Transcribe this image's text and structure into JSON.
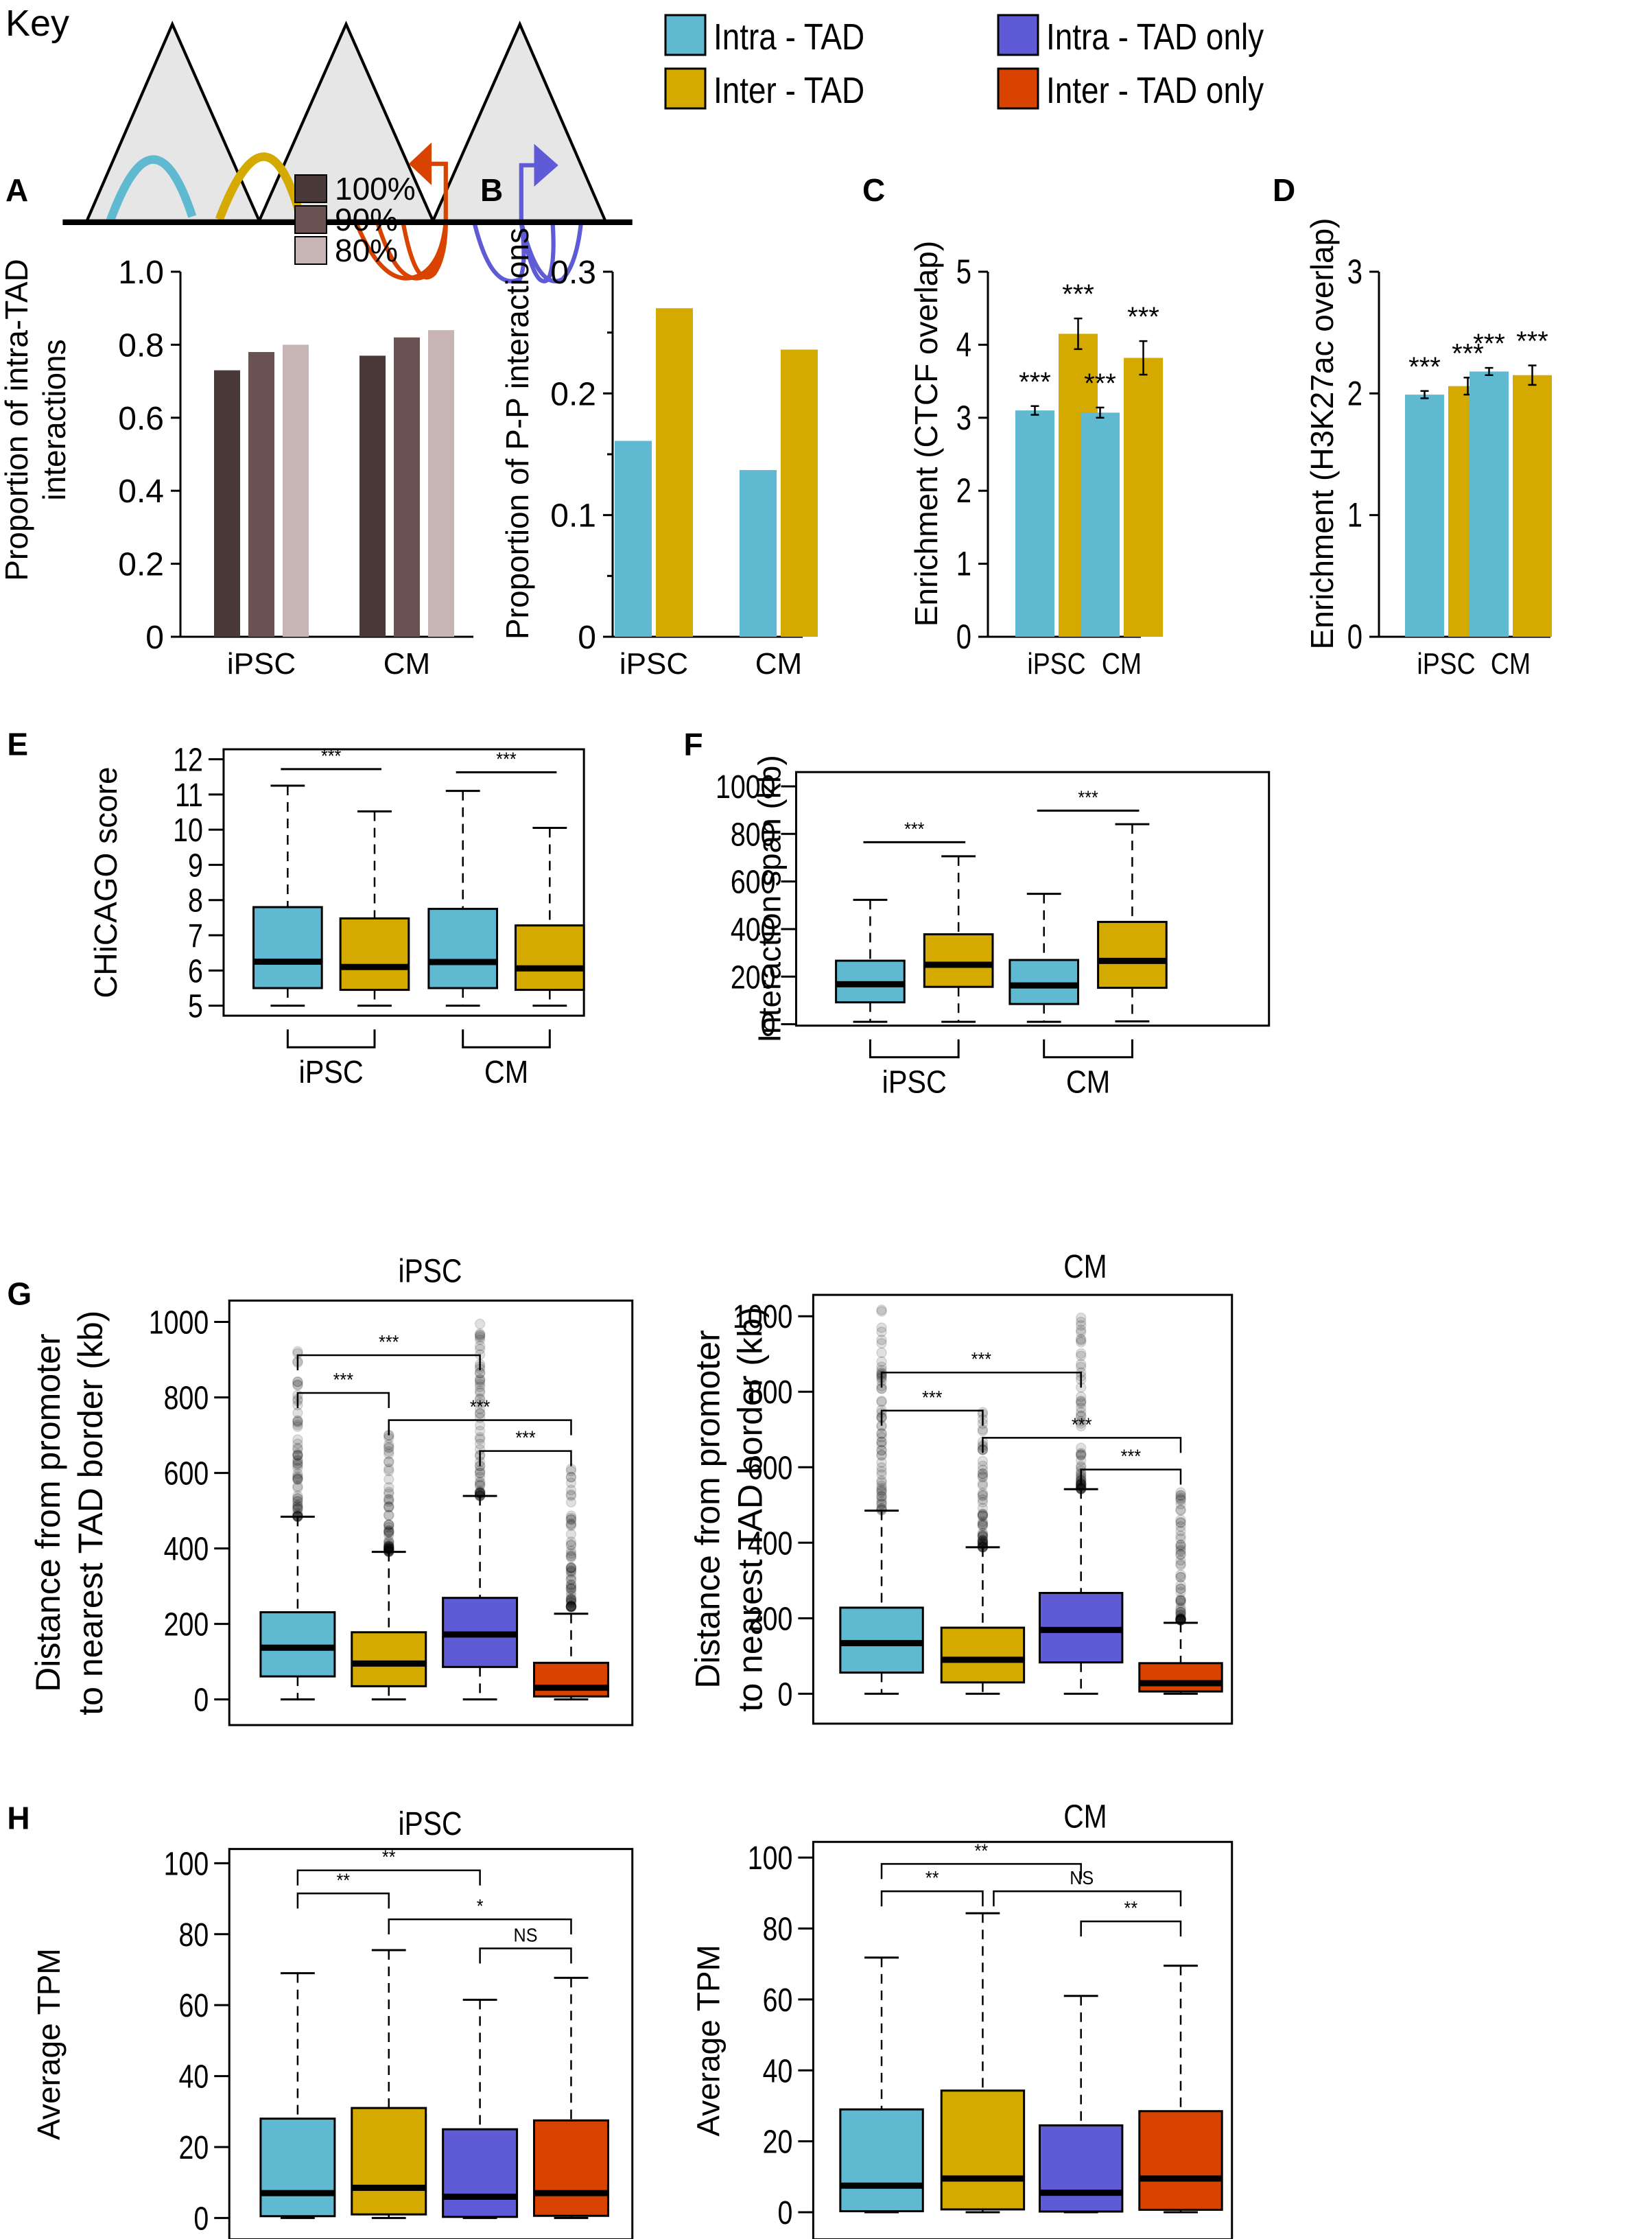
{
  "key": {
    "title": "Key",
    "legend": [
      {
        "label": "Intra - TAD",
        "color": "#5fbad1"
      },
      {
        "label": "Inter - TAD",
        "color": "#d4a900"
      },
      {
        "label": "Intra - TAD only",
        "color": "#5f5bd6"
      },
      {
        "label": "Inter - TAD only",
        "color": "#d84400"
      }
    ],
    "diagram": {
      "tad_fill": "#e6e6e6",
      "arc_colors": {
        "intra": "#5fbad1",
        "inter": "#d4a900",
        "inter_only": "#d84400",
        "intra_only": "#5f5bd6"
      }
    }
  },
  "chart_data": [
    {
      "id": "A",
      "panel_label": "A",
      "type": "bar",
      "categories": [
        "iPSC",
        "CM"
      ],
      "series": [
        {
          "name": "100%",
          "color": "#4a3939",
          "values": [
            0.73,
            0.77
          ]
        },
        {
          "name": "90%",
          "color": "#6b5252",
          "values": [
            0.78,
            0.82
          ]
        },
        {
          "name": "80%",
          "color": "#c6b5b4",
          "values": [
            0.8,
            0.84
          ]
        }
      ],
      "title": "",
      "xlabel": "",
      "ylabel": "Proportion of intra-TAD interactions",
      "ylabel_lines": [
        "Proportion of intra-TAD",
        "interactions"
      ],
      "ylim": [
        0,
        1.0
      ],
      "yticks": [
        0,
        0.2,
        0.4,
        0.6,
        0.8,
        1.0
      ],
      "ytick_labels": [
        "0",
        "0.2",
        "0.4",
        "0.6",
        "0.8",
        "1.0"
      ],
      "legend_position": "top-right",
      "grid": false
    },
    {
      "id": "B",
      "panel_label": "B",
      "type": "bar",
      "categories": [
        "iPSC",
        "CM"
      ],
      "series": [
        {
          "name": "Intra - TAD",
          "color": "#5fbad1",
          "values": [
            0.161,
            0.137
          ]
        },
        {
          "name": "Inter - TAD",
          "color": "#d4a900",
          "values": [
            0.27,
            0.236
          ]
        }
      ],
      "title": "",
      "xlabel": "",
      "ylabel": "Proportion of P-P interactions",
      "ylim": [
        0,
        0.3
      ],
      "yticks": [
        0,
        0.1,
        0.2,
        0.3
      ],
      "ytick_labels": [
        "0",
        "0.1",
        "0.2",
        "0.3"
      ],
      "minor_yticks": [
        0.05,
        0.15,
        0.25
      ],
      "grid": false
    },
    {
      "id": "C",
      "panel_label": "C",
      "type": "bar",
      "categories": [
        "iPSC",
        "CM"
      ],
      "series": [
        {
          "name": "Intra - TAD",
          "color": "#5fbad1",
          "values": [
            3.1,
            3.07
          ],
          "err": [
            0.06,
            0.07
          ],
          "sig": [
            "***",
            "***"
          ]
        },
        {
          "name": "Inter - TAD",
          "color": "#d4a900",
          "values": [
            4.15,
            3.82
          ],
          "err": [
            0.21,
            0.23
          ],
          "sig": [
            "***",
            "***"
          ]
        }
      ],
      "title": "",
      "xlabel": "",
      "ylabel": "Enrichment (CTCF overlap)",
      "ylim": [
        0,
        5
      ],
      "yticks": [
        0,
        1,
        2,
        3,
        4,
        5
      ],
      "ytick_labels": [
        "0",
        "1",
        "2",
        "3",
        "4",
        "5"
      ],
      "grid": false
    },
    {
      "id": "D",
      "panel_label": "D",
      "type": "bar",
      "categories": [
        "iPSC",
        "CM"
      ],
      "series": [
        {
          "name": "Intra - TAD",
          "color": "#5fbad1",
          "values": [
            1.99,
            2.18
          ],
          "err": [
            0.03,
            0.03
          ],
          "sig": [
            "***",
            "***"
          ]
        },
        {
          "name": "Inter - TAD",
          "color": "#d4a900",
          "values": [
            2.06,
            2.15
          ],
          "err": [
            0.07,
            0.08
          ],
          "sig": [
            "***",
            "***"
          ]
        }
      ],
      "title": "",
      "xlabel": "",
      "ylabel": "Enrichment (H3K27ac overlap)",
      "ylim": [
        0,
        3
      ],
      "yticks": [
        0,
        1,
        2,
        3
      ],
      "ytick_labels": [
        "0",
        "1",
        "2",
        "3"
      ],
      "grid": false
    },
    {
      "id": "E",
      "panel_label": "E",
      "type": "box",
      "title": "",
      "ylabel": "CHiCAGO score",
      "ylim": [
        5,
        12
      ],
      "yticks": [
        5,
        6,
        7,
        8,
        9,
        10,
        11,
        12
      ],
      "ytick_labels": [
        "5",
        "6",
        "7",
        "8",
        "9",
        "10",
        "11",
        "12"
      ],
      "groups": [
        "iPSC",
        "CM"
      ],
      "boxes": [
        {
          "group": "iPSC",
          "series": "Intra - TAD",
          "color": "#5fbad1",
          "whisker_low": 5.0,
          "q1": 5.5,
          "median": 6.25,
          "q3": 7.8,
          "whisker_high": 11.25
        },
        {
          "group": "iPSC",
          "series": "Inter - TAD",
          "color": "#d4a900",
          "whisker_low": 5.0,
          "q1": 5.45,
          "median": 6.1,
          "q3": 7.48,
          "whisker_high": 10.52
        },
        {
          "group": "CM",
          "series": "Intra - TAD",
          "color": "#5fbad1",
          "whisker_low": 5.0,
          "q1": 5.5,
          "median": 6.24,
          "q3": 7.75,
          "whisker_high": 11.1
        },
        {
          "group": "CM",
          "series": "Inter - TAD",
          "color": "#d4a900",
          "whisker_low": 5.0,
          "q1": 5.45,
          "median": 6.06,
          "q3": 7.28,
          "whisker_high": 10.05
        }
      ],
      "comparisons": [
        {
          "from": 0,
          "to": 1,
          "label": "***",
          "y": 11.72
        },
        {
          "from": 2,
          "to": 3,
          "label": "***",
          "y": 11.63
        }
      ]
    },
    {
      "id": "F",
      "panel_label": "F",
      "type": "box",
      "title": "",
      "ylabel": "Interaction span (kb)",
      "ylim": [
        0,
        1000
      ],
      "yticks": [
        0,
        200,
        400,
        600,
        800,
        1000
      ],
      "ytick_labels": [
        "0",
        "200",
        "400",
        "600",
        "800",
        "1000"
      ],
      "groups": [
        "iPSC",
        "CM"
      ],
      "boxes": [
        {
          "group": "iPSC",
          "series": "Intra - TAD",
          "color": "#5fbad1",
          "whisker_low": 10,
          "q1": 92,
          "median": 168,
          "q3": 267,
          "whisker_high": 523
        },
        {
          "group": "iPSC",
          "series": "Inter - TAD",
          "color": "#d4a900",
          "whisker_low": 10,
          "q1": 157,
          "median": 250,
          "q3": 378,
          "whisker_high": 706
        },
        {
          "group": "CM",
          "series": "Intra - TAD",
          "color": "#5fbad1",
          "whisker_low": 10,
          "q1": 85,
          "median": 163,
          "q3": 270,
          "whisker_high": 548
        },
        {
          "group": "CM",
          "series": "Inter - TAD",
          "color": "#d4a900",
          "whisker_low": 12,
          "q1": 153,
          "median": 266,
          "q3": 430,
          "whisker_high": 841
        }
      ],
      "comparisons": [
        {
          "from": 0,
          "to": 1,
          "label": "***",
          "y": 765
        },
        {
          "from": 2,
          "to": 3,
          "label": "***",
          "y": 898
        }
      ]
    },
    {
      "id": "G-iPSC",
      "panel_label": "G",
      "type": "box",
      "title": "iPSC",
      "ylabel": "Distance from promoter to nearest TAD border (kb)",
      "ylabel_lines": [
        "Distance from promoter",
        "to nearest TAD border (kb)"
      ],
      "ylim": [
        0,
        1000
      ],
      "yticks": [
        0,
        200,
        400,
        600,
        800,
        1000
      ],
      "ytick_labels": [
        "0",
        "200",
        "400",
        "600",
        "800",
        "1000"
      ],
      "boxes": [
        {
          "series": "Intra - TAD",
          "color": "#5fbad1",
          "whisker_low": 0,
          "q1": 61,
          "median": 137,
          "q3": 231,
          "whisker_high": 484,
          "outliers_range": [
            484,
            1015
          ]
        },
        {
          "series": "Inter - TAD",
          "color": "#d4a900",
          "whisker_low": 0,
          "q1": 35,
          "median": 95,
          "q3": 178,
          "whisker_high": 391,
          "outliers_range": [
            391,
            705
          ]
        },
        {
          "series": "Intra - TAD only",
          "color": "#5f5bd6",
          "whisker_low": 0,
          "q1": 86,
          "median": 172,
          "q3": 269,
          "whisker_high": 539,
          "outliers_range": [
            539,
            1015
          ]
        },
        {
          "series": "Inter - TAD only",
          "color": "#d84400",
          "whisker_low": 0,
          "q1": 8,
          "median": 31,
          "q3": 97,
          "whisker_high": 227,
          "outliers_range": [
            245,
            630
          ]
        }
      ],
      "comparisons": [
        {
          "from": 0,
          "to": 2,
          "label": "***",
          "y": 912
        },
        {
          "from": 0,
          "to": 1,
          "label": "***",
          "y": 812
        },
        {
          "from": 1,
          "to": 3,
          "label": "***",
          "y": 740
        },
        {
          "from": 2,
          "to": 3,
          "label": "***",
          "y": 658
        }
      ]
    },
    {
      "id": "G-CM",
      "panel_label": "",
      "type": "box",
      "title": "CM",
      "ylabel": "Distance from promoter to nearest TAD border (kb)",
      "ylabel_lines": [
        "Distance from promoter",
        "to nearest TAD border (kb)"
      ],
      "ylim": [
        0,
        1000
      ],
      "yticks": [
        0,
        200,
        400,
        600,
        800,
        1000
      ],
      "ytick_labels": [
        "0",
        "200",
        "400",
        "600",
        "800",
        "1000"
      ],
      "boxes": [
        {
          "series": "Intra - TAD",
          "color": "#5fbad1",
          "whisker_low": 0,
          "q1": 56,
          "median": 134,
          "q3": 228,
          "whisker_high": 485,
          "outliers_range": [
            485,
            1040
          ]
        },
        {
          "series": "Inter - TAD",
          "color": "#d4a900",
          "whisker_low": 0,
          "q1": 30,
          "median": 90,
          "q3": 175,
          "whisker_high": 388,
          "outliers_range": [
            388,
            820
          ]
        },
        {
          "series": "Intra - TAD only",
          "color": "#5f5bd6",
          "whisker_low": 0,
          "q1": 83,
          "median": 169,
          "q3": 267,
          "whisker_high": 542,
          "outliers_range": [
            542,
            1040
          ]
        },
        {
          "series": "Inter - TAD only",
          "color": "#d84400",
          "whisker_low": 0,
          "q1": 6,
          "median": 28,
          "q3": 81,
          "whisker_high": 188,
          "outliers_range": [
            195,
            540
          ]
        }
      ],
      "comparisons": [
        {
          "from": 0,
          "to": 2,
          "label": "***",
          "y": 851
        },
        {
          "from": 0,
          "to": 1,
          "label": "***",
          "y": 750
        },
        {
          "from": 1,
          "to": 3,
          "label": "***",
          "y": 678
        },
        {
          "from": 2,
          "to": 3,
          "label": "***",
          "y": 594
        }
      ]
    },
    {
      "id": "H-iPSC",
      "panel_label": "H",
      "type": "box",
      "title": "iPSC",
      "ylabel": "Average TPM",
      "ylim": [
        0,
        100
      ],
      "yticks": [
        0,
        20,
        40,
        60,
        80,
        100
      ],
      "ytick_labels": [
        "0",
        "20",
        "40",
        "60",
        "80",
        "100"
      ],
      "boxes": [
        {
          "series": "Intra - TAD",
          "color": "#5fbad1",
          "whisker_low": 0,
          "q1": 0.5,
          "median": 7,
          "q3": 28,
          "whisker_high": 69
        },
        {
          "series": "Inter - TAD",
          "color": "#d4a900",
          "whisker_low": 0,
          "q1": 1,
          "median": 8.5,
          "q3": 31,
          "whisker_high": 75.5
        },
        {
          "series": "Intra - TAD only",
          "color": "#5f5bd6",
          "whisker_low": 0,
          "q1": 0.3,
          "median": 6,
          "q3": 25,
          "whisker_high": 61.5
        },
        {
          "series": "Inter - TAD only",
          "color": "#d84400",
          "whisker_low": 0,
          "q1": 0.6,
          "median": 7,
          "q3": 27.5,
          "whisker_high": 67.7
        }
      ],
      "comparisons": [
        {
          "from": 0,
          "to": 2,
          "label": "**",
          "y": 98
        },
        {
          "from": 0,
          "to": 1,
          "label": "**",
          "y": 91.5
        },
        {
          "from": 1,
          "to": 3,
          "label": "*",
          "y": 84.2
        },
        {
          "from": 2,
          "to": 3,
          "label": "NS",
          "y": 76
        }
      ]
    },
    {
      "id": "H-CM",
      "panel_label": "",
      "type": "box",
      "title": "CM",
      "ylabel": "Average TPM",
      "ylim": [
        0,
        100
      ],
      "yticks": [
        0,
        20,
        40,
        60,
        80,
        100
      ],
      "ytick_labels": [
        "0",
        "20",
        "40",
        "60",
        "80",
        "100"
      ],
      "boxes": [
        {
          "series": "Intra - TAD",
          "color": "#5fbad1",
          "whisker_low": 0,
          "q1": 0.3,
          "median": 7.5,
          "q3": 29,
          "whisker_high": 71.8
        },
        {
          "series": "Inter - TAD",
          "color": "#d4a900",
          "whisker_low": 0,
          "q1": 0.8,
          "median": 9.5,
          "q3": 34.3,
          "whisker_high": 84.3
        },
        {
          "series": "Intra - TAD only",
          "color": "#5f5bd6",
          "whisker_low": 0,
          "q1": 0.2,
          "median": 5.5,
          "q3": 24.5,
          "whisker_high": 61
        },
        {
          "series": "Inter - TAD only",
          "color": "#d84400",
          "whisker_low": 0,
          "q1": 0.7,
          "median": 9.5,
          "q3": 28.5,
          "whisker_high": 69.5
        }
      ],
      "comparisons": [
        {
          "from": 0,
          "to": 2,
          "label": "**",
          "y": 98.2
        },
        {
          "from": 0,
          "to": 1,
          "label": "**",
          "y": 90.5
        },
        {
          "from": 1,
          "to": 3,
          "label": "NS",
          "y": 90.5
        },
        {
          "from": 2,
          "to": 3,
          "label": "**",
          "y": 82
        }
      ]
    }
  ]
}
